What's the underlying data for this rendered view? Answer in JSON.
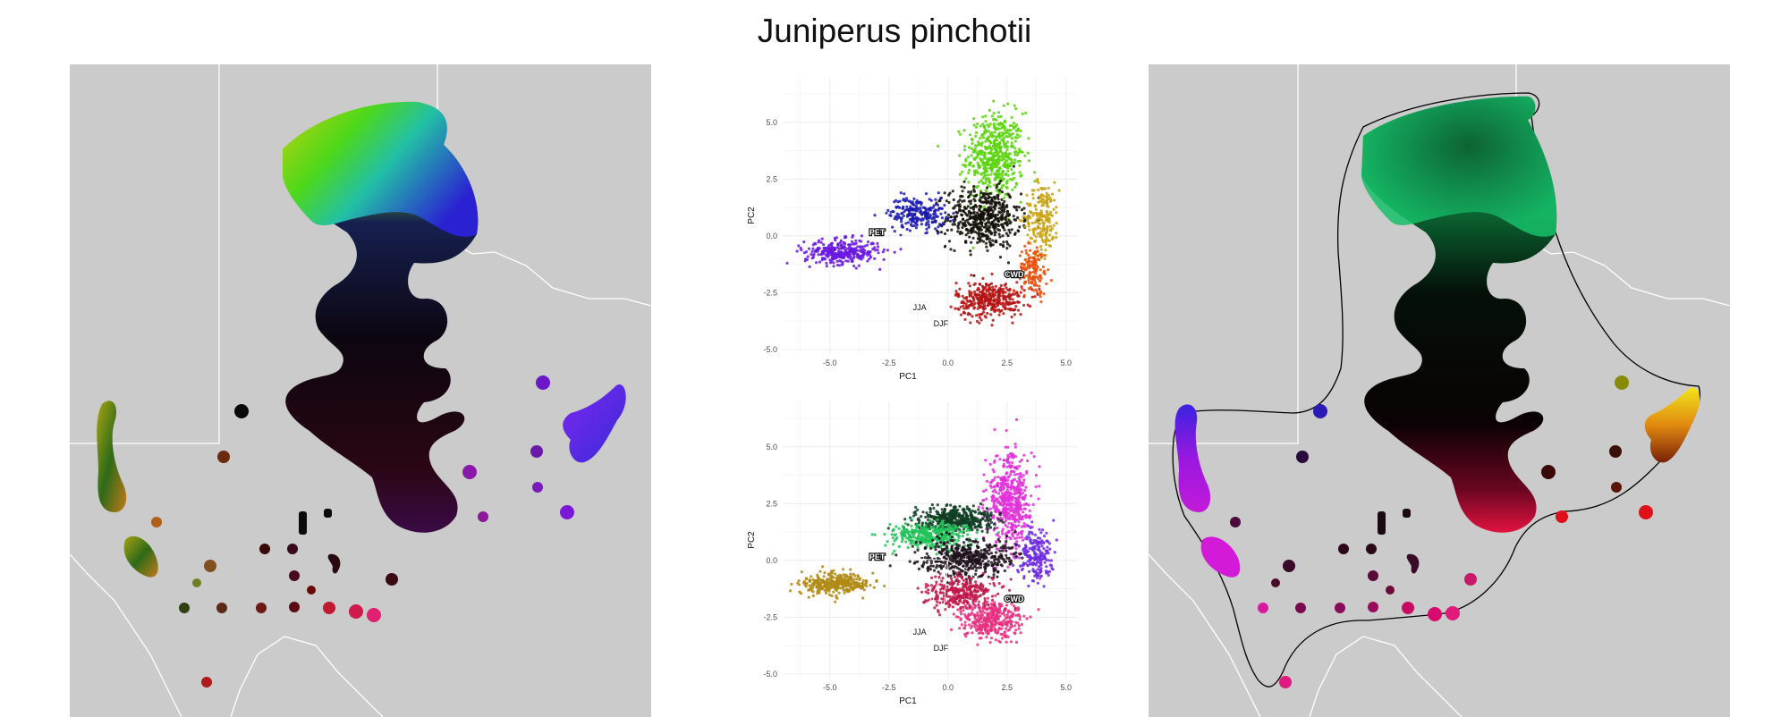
{
  "title": "Juniperus pinchotii",
  "colors": {
    "map_background": "#cbcbcb",
    "borders": "#ffffff",
    "hull": "#000000",
    "grid": "#ebebeb"
  },
  "chart_data": [
    {
      "type": "scatter",
      "panel": "pca-top",
      "xlabel": "PC1",
      "ylabel": "PC2",
      "xlim": [
        -7,
        5.5
      ],
      "ylim": [
        -5.2,
        7
      ],
      "xticks": [
        "-5.0",
        "-2.5",
        "0.0",
        "2.5",
        "5.0"
      ],
      "yticks": [
        "-5.0",
        "-2.5",
        "0.0",
        "2.5",
        "5.0"
      ],
      "vectors": [
        {
          "label": "PET",
          "x": -3.0,
          "y": 0.15,
          "boxed": true
        },
        {
          "label": "CWD",
          "x": 2.8,
          "y": -1.7,
          "boxed": true
        },
        {
          "label": "JJA",
          "x": -1.2,
          "y": -2.8,
          "boxed": false
        },
        {
          "label": "DJF",
          "x": -0.3,
          "y": -3.5,
          "boxed": false
        }
      ],
      "clusters": [
        {
          "name": "north",
          "x": 2.0,
          "y": 3.5,
          "sx": 1.0,
          "sy": 1.6,
          "n": 520,
          "color": "#5cd40e"
        },
        {
          "name": "center",
          "x": 1.5,
          "y": 0.8,
          "sx": 1.3,
          "sy": 1.1,
          "n": 520,
          "color": "#141008"
        },
        {
          "name": "east",
          "x": 4.0,
          "y": 0.8,
          "sx": 0.6,
          "sy": 1.3,
          "n": 200,
          "color": "#c9a20d"
        },
        {
          "name": "west-arm",
          "x": -4.5,
          "y": -0.7,
          "sx": 1.3,
          "sy": 0.45,
          "n": 320,
          "color": "#6a17e0"
        },
        {
          "name": "northwest",
          "x": -1.3,
          "y": 1.0,
          "sx": 1.0,
          "sy": 0.6,
          "n": 220,
          "color": "#1a1ab0"
        },
        {
          "name": "south",
          "x": 1.8,
          "y": -2.8,
          "sx": 1.2,
          "sy": 0.65,
          "n": 360,
          "color": "#b51414"
        },
        {
          "name": "southeast",
          "x": 3.6,
          "y": -1.5,
          "sx": 0.5,
          "sy": 0.9,
          "n": 150,
          "color": "#e6500c"
        }
      ]
    },
    {
      "type": "scatter",
      "panel": "pca-bottom",
      "xlabel": "PC1",
      "ylabel": "PC2",
      "xlim": [
        -7,
        5.5
      ],
      "ylim": [
        -5.2,
        7
      ],
      "xticks": [
        "-5.0",
        "-2.5",
        "0.0",
        "2.5",
        "5.0"
      ],
      "yticks": [
        "-5.0",
        "-2.5",
        "0.0",
        "2.5",
        "5.0"
      ],
      "vectors": [
        {
          "label": "PET",
          "x": -3.0,
          "y": 0.15,
          "boxed": true
        },
        {
          "label": "CWD",
          "x": 2.8,
          "y": -1.7,
          "boxed": true
        },
        {
          "label": "JJA",
          "x": -1.2,
          "y": -2.8,
          "boxed": false
        },
        {
          "label": "DJF",
          "x": -0.3,
          "y": -3.5,
          "boxed": false
        }
      ],
      "clusters": [
        {
          "name": "magenta",
          "x": 2.6,
          "y": 2.6,
          "sx": 0.8,
          "sy": 1.7,
          "n": 520,
          "color": "#e030d8"
        },
        {
          "name": "dark-green",
          "x": 0.3,
          "y": 1.8,
          "sx": 1.4,
          "sy": 0.45,
          "n": 420,
          "color": "#0e3d22"
        },
        {
          "name": "green",
          "x": -0.8,
          "y": 1.1,
          "sx": 1.3,
          "sy": 0.45,
          "n": 360,
          "color": "#22c45a"
        },
        {
          "name": "violet",
          "x": 3.7,
          "y": 0.2,
          "sx": 0.6,
          "sy": 1.0,
          "n": 200,
          "color": "#6d2ae0"
        },
        {
          "name": "olive-arm",
          "x": -4.8,
          "y": -1.0,
          "sx": 1.2,
          "sy": 0.4,
          "n": 320,
          "color": "#b08a14"
        },
        {
          "name": "dark",
          "x": 0.8,
          "y": 0.1,
          "sx": 1.6,
          "sy": 0.7,
          "n": 480,
          "color": "#20121c"
        },
        {
          "name": "pink",
          "x": 1.8,
          "y": -2.6,
          "sx": 1.1,
          "sy": 0.7,
          "n": 360,
          "color": "#e83080"
        },
        {
          "name": "crimson",
          "x": 0.5,
          "y": -1.4,
          "sx": 1.3,
          "sy": 0.6,
          "n": 300,
          "color": "#c0184a"
        }
      ]
    }
  ]
}
